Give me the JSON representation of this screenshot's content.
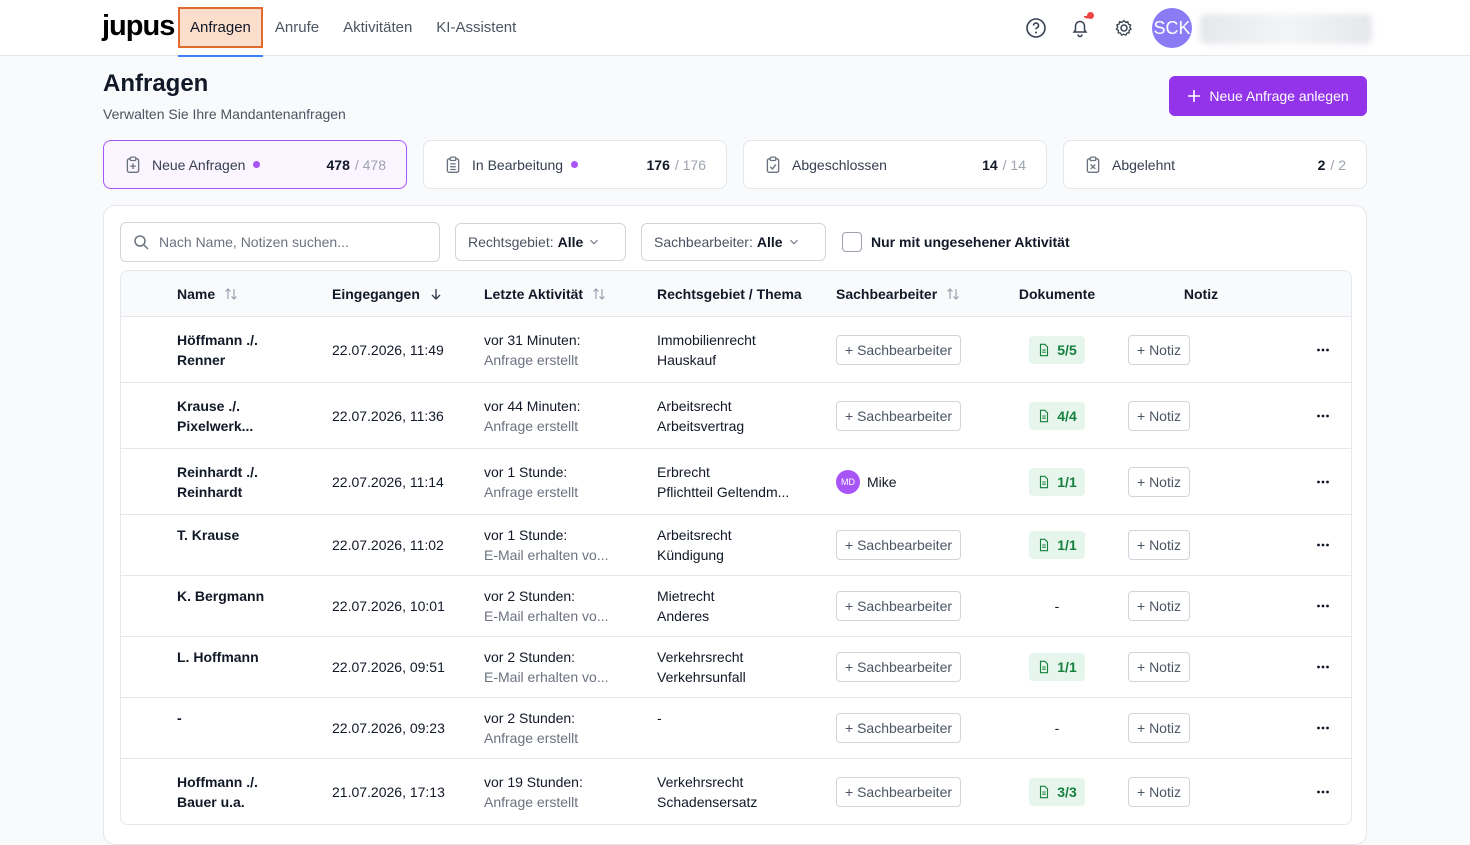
{
  "nav": {
    "logo": "jupus",
    "tabs": [
      "Anfragen",
      "Anrufe",
      "Aktivitäten",
      "KI-Assistent"
    ],
    "active_tab": 0,
    "avatar": "SCK"
  },
  "header": {
    "title": "Anfragen",
    "subtitle": "Verwalten Sie Ihre Mandantenanfragen",
    "button": "Neue Anfrage anlegen"
  },
  "stats": [
    {
      "label": "Neue Anfragen",
      "count": "478",
      "total": "/ 478",
      "unseen": true,
      "selected": true,
      "icon": "plus"
    },
    {
      "label": "In Bearbeitung",
      "count": "176",
      "total": "/ 176",
      "unseen": true,
      "selected": false,
      "icon": "list"
    },
    {
      "label": "Abgeschlossen",
      "count": "14",
      "total": "/ 14",
      "unseen": false,
      "selected": false,
      "icon": "check"
    },
    {
      "label": "Abgelehnt",
      "count": "2",
      "total": "/ 2",
      "unseen": false,
      "selected": false,
      "icon": "x"
    }
  ],
  "filters": {
    "search_placeholder": "Nach Name, Notizen suchen...",
    "dropdowns": [
      {
        "label": "Rechtsgebiet:",
        "value": "Alle"
      },
      {
        "label": "Sachbearbeiter:",
        "value": "Alle"
      }
    ],
    "checkbox": "Nur mit ungesehener Aktivität"
  },
  "table": {
    "columns": [
      "Name",
      "Eingegangen",
      "Letzte Aktivität",
      "Rechtsgebiet / Thema",
      "Sachbearbeiter",
      "Dokumente",
      "Notiz"
    ],
    "rows": [
      {
        "name": "Höffmann ./. Renner",
        "received": "22.07.2026, 11:49",
        "activity_time": "vor 31 Minuten:",
        "activity_text": "Anfrage erstellt",
        "area": "Immobilienrecht",
        "topic": "Hauskauf",
        "assign_button": "+ Sachbearbeiter",
        "documents": "5/5",
        "note_button": "+ Notiz"
      },
      {
        "name": "Krause ./. Pixelwerk...",
        "received": "22.07.2026, 11:36",
        "activity_time": "vor 44 Minuten:",
        "activity_text": "Anfrage erstellt",
        "area": "Arbeitsrecht",
        "topic": "Arbeitsvertrag",
        "assign_button": "+ Sachbearbeiter",
        "documents": "4/4",
        "note_button": "+ Notiz"
      },
      {
        "name": "Reinhardt ./. Reinhardt",
        "received": "22.07.2026, 11:14",
        "activity_time": "vor 1 Stunde:",
        "activity_text": "Anfrage erstellt",
        "area": "Erbrecht",
        "topic": "Pflichtteil Geltendm...",
        "assignee": {
          "initials": "MD",
          "name": "Mike"
        },
        "documents": "1/1",
        "note_button": "+ Notiz"
      },
      {
        "name": "T. Krause",
        "received": "22.07.2026, 11:02",
        "activity_time": "vor 1 Stunde:",
        "activity_text": "E-Mail erhalten vo...",
        "area": "Arbeitsrecht",
        "topic": "Kündigung",
        "assign_button": "+ Sachbearbeiter",
        "documents": "1/1",
        "note_button": "+ Notiz"
      },
      {
        "name": "K. Bergmann",
        "received": "22.07.2026, 10:01",
        "activity_time": "vor 2 Stunden:",
        "activity_text": "E-Mail erhalten vo...",
        "area": "Mietrecht",
        "topic": "Anderes",
        "assign_button": "+ Sachbearbeiter",
        "documents": "-",
        "note_button": "+ Notiz"
      },
      {
        "name": "L. Hoffmann",
        "received": "22.07.2026, 09:51",
        "activity_time": "vor 2 Stunden:",
        "activity_text": "E-Mail erhalten vo...",
        "area": "Verkehrsrecht",
        "topic": "Verkehrsunfall",
        "assign_button": "+ Sachbearbeiter",
        "documents": "1/1",
        "note_button": "+ Notiz"
      },
      {
        "name": "-",
        "received": "22.07.2026, 09:23",
        "activity_time": "vor 2 Stunden:",
        "activity_text": "Anfrage erstellt",
        "area": "-",
        "assign_button": "+ Sachbearbeiter",
        "documents": "-",
        "note_button": "+ Notiz"
      },
      {
        "name": "Hoffmann ./. Bauer u.a.",
        "received": "21.07.2026, 17:13",
        "activity_time": "vor 19 Stunden:",
        "activity_text": "Anfrage erstellt",
        "area": "Verkehrsrecht",
        "topic": "Schadensersatz",
        "assign_button": "+ Sachbearbeiter",
        "documents": "3/3",
        "note_button": "+ Notiz"
      }
    ]
  }
}
